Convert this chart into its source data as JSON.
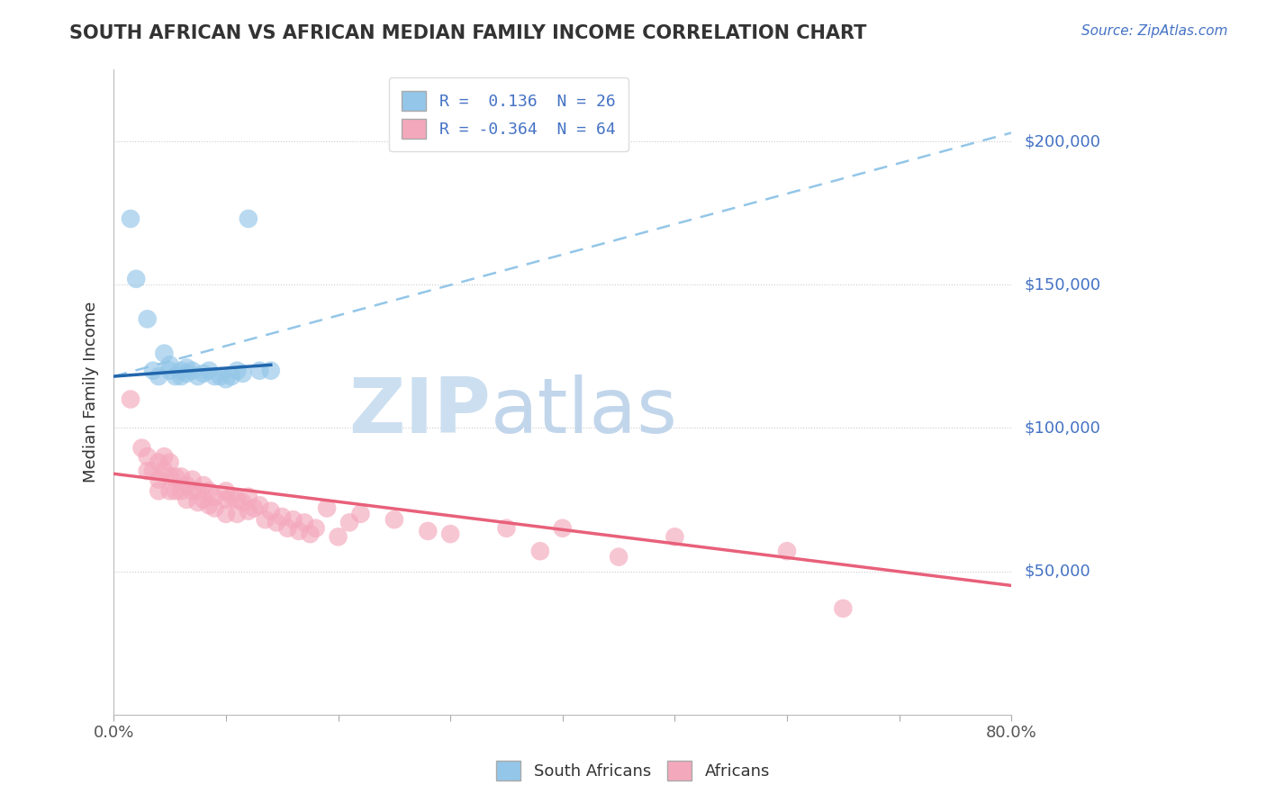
{
  "title": "SOUTH AFRICAN VS AFRICAN MEDIAN FAMILY INCOME CORRELATION CHART",
  "source_text": "Source: ZipAtlas.com",
  "ylabel": "Median Family Income",
  "x_min": 0.0,
  "x_max": 0.8,
  "y_min": 0,
  "y_max": 225000,
  "y_ticks": [
    50000,
    100000,
    150000,
    200000
  ],
  "y_tick_labels": [
    "$50,000",
    "$100,000",
    "$150,000",
    "$200,000"
  ],
  "x_ticks": [
    0.0,
    0.1,
    0.2,
    0.3,
    0.4,
    0.5,
    0.6,
    0.7,
    0.8
  ],
  "x_tick_labels": [
    "0.0%",
    "",
    "",
    "",
    "",
    "",
    "",
    "",
    "80.0%"
  ],
  "r_south_african": "0.136",
  "n_south_african": 26,
  "r_african": "-0.364",
  "n_african": 64,
  "blue_color": "#93c6e8",
  "pink_color": "#f4a8bc",
  "blue_line_color": "#2166ac",
  "pink_line_color": "#e8607a",
  "dashed_line_color": "#93c6e8",
  "watermark_color": "#ccdff0",
  "south_african_x": [
    0.015,
    0.12,
    0.02,
    0.03,
    0.035,
    0.04,
    0.045,
    0.05,
    0.05,
    0.055,
    0.06,
    0.06,
    0.065,
    0.065,
    0.07,
    0.075,
    0.08,
    0.085,
    0.09,
    0.095,
    0.1,
    0.105,
    0.11,
    0.115,
    0.13,
    0.14
  ],
  "south_african_y": [
    173000,
    173000,
    152000,
    138000,
    120000,
    118000,
    126000,
    122000,
    120000,
    118000,
    120000,
    118000,
    121000,
    119000,
    120000,
    118000,
    119000,
    120000,
    118000,
    118000,
    117000,
    118000,
    120000,
    119000,
    120000,
    120000
  ],
  "african_x": [
    0.015,
    0.025,
    0.03,
    0.03,
    0.035,
    0.04,
    0.04,
    0.04,
    0.045,
    0.045,
    0.05,
    0.05,
    0.05,
    0.055,
    0.055,
    0.06,
    0.06,
    0.065,
    0.065,
    0.07,
    0.07,
    0.075,
    0.075,
    0.08,
    0.08,
    0.085,
    0.085,
    0.09,
    0.09,
    0.1,
    0.1,
    0.1,
    0.105,
    0.11,
    0.11,
    0.115,
    0.12,
    0.12,
    0.125,
    0.13,
    0.135,
    0.14,
    0.145,
    0.15,
    0.155,
    0.16,
    0.165,
    0.17,
    0.175,
    0.18,
    0.19,
    0.2,
    0.21,
    0.22,
    0.25,
    0.28,
    0.3,
    0.35,
    0.38,
    0.4,
    0.45,
    0.5,
    0.6,
    0.65
  ],
  "african_y": [
    110000,
    93000,
    85000,
    90000,
    85000,
    88000,
    82000,
    78000,
    90000,
    85000,
    88000,
    83000,
    78000,
    83000,
    78000,
    83000,
    78000,
    80000,
    75000,
    82000,
    78000,
    78000,
    74000,
    80000,
    75000,
    78000,
    73000,
    76000,
    72000,
    78000,
    75000,
    70000,
    76000,
    75000,
    70000,
    74000,
    76000,
    71000,
    72000,
    73000,
    68000,
    71000,
    67000,
    69000,
    65000,
    68000,
    64000,
    67000,
    63000,
    65000,
    72000,
    62000,
    67000,
    70000,
    68000,
    64000,
    63000,
    65000,
    57000,
    65000,
    55000,
    62000,
    57000,
    37000
  ],
  "blue_line_x": [
    0.0,
    0.14
  ],
  "blue_line_y": [
    118000,
    122000
  ],
  "dashed_line_x": [
    0.0,
    0.8
  ],
  "dashed_line_y": [
    118000,
    203000
  ],
  "pink_line_x": [
    0.0,
    0.8
  ],
  "pink_line_y": [
    84000,
    45000
  ]
}
